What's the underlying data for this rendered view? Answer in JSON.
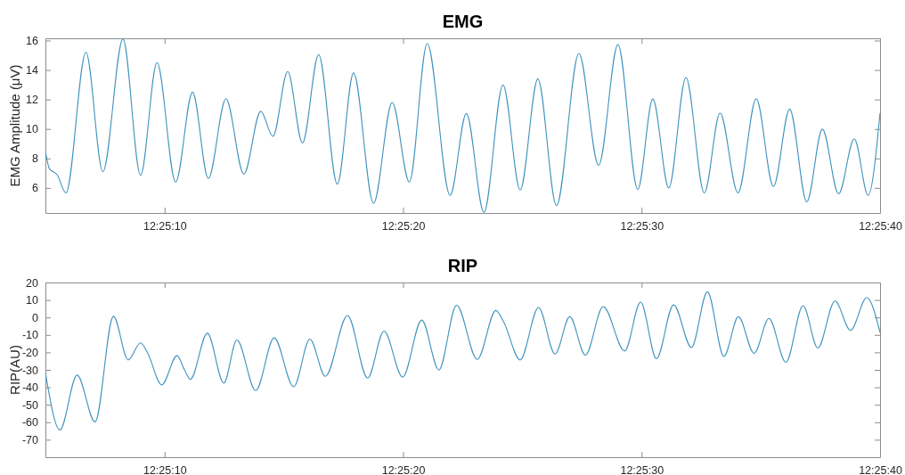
{
  "chart_data": [
    {
      "type": "line",
      "title": "EMG",
      "ylabel": "EMG Amplitude (μV)",
      "xlim": [
        12.418056,
        12.427778
      ],
      "xticks": [
        {
          "value": 12.419444,
          "label": "12:25:10"
        },
        {
          "value": 12.422222,
          "label": "12:25:20"
        },
        {
          "value": 12.425,
          "label": "12:25:30"
        },
        {
          "value": 12.427778,
          "label": "12:25:40"
        }
      ],
      "ylim": [
        4.3,
        16.15
      ],
      "yticks": [
        6,
        8,
        10,
        12,
        14,
        16
      ],
      "grid": false,
      "marker": "none",
      "line_style": "solid",
      "series": [
        {
          "color": "#3f93bd",
          "x": [
            12.418056,
            12.418103,
            12.418192,
            12.418295,
            12.418528,
            12.418725,
            12.418959,
            12.419164,
            12.419356,
            12.419573,
            12.41977,
            12.419953,
            12.420159,
            12.420367,
            12.420564,
            12.420706,
            12.420878,
            12.42105,
            12.421239,
            12.421456,
            12.421645,
            12.421878,
            12.422095,
            12.422295,
            12.422503,
            12.42277,
            12.422959,
            12.423164,
            12.423386,
            12.423586,
            12.423792,
            12.424009,
            12.42427,
            12.4245,
            12.424725,
            12.424956,
            12.425131,
            12.425317,
            12.425517,
            12.425731,
            12.425914,
            12.426123,
            12.426336,
            12.426536,
            12.426725,
            12.426925,
            12.427106,
            12.427295,
            12.427478,
            12.427639,
            12.427778
          ],
          "values": [
            8.5,
            7.3,
            6.9,
            5.66,
            15.2,
            7.1,
            16.1,
            6.86,
            14.5,
            6.4,
            12.5,
            6.64,
            12.05,
            6.94,
            11.2,
            9.5,
            13.9,
            9.05,
            15.05,
            6.26,
            13.8,
            4.96,
            11.8,
            6.4,
            15.8,
            5.5,
            11.05,
            4.35,
            12.99,
            5.86,
            13.39,
            4.8,
            15.12,
            7.54,
            15.72,
            5.9,
            12.03,
            6.0,
            13.49,
            5.66,
            11.09,
            5.66,
            12.05,
            6.1,
            11.35,
            5.06,
            9.99,
            5.6,
            9.33,
            5.5,
            11.09
          ]
        }
      ]
    },
    {
      "type": "line",
      "title": "RIP",
      "ylabel": "RIP(AU)",
      "xlim": [
        12.418056,
        12.427778
      ],
      "xticks": [
        {
          "value": 12.419444,
          "label": "12:25:10"
        },
        {
          "value": 12.422222,
          "label": "12:25:20"
        },
        {
          "value": 12.425,
          "label": "12:25:30"
        },
        {
          "value": 12.427778,
          "label": "12:25:40"
        }
      ],
      "ylim": [
        -80,
        20
      ],
      "yticks": [
        -70,
        -60,
        -50,
        -40,
        -30,
        -20,
        -10,
        0,
        10,
        20
      ],
      "grid": false,
      "marker": "none",
      "line_style": "solid",
      "series": [
        {
          "color": "#3f93bd",
          "x": [
            12.418056,
            12.418225,
            12.418425,
            12.418634,
            12.418848,
            12.41902,
            12.419164,
            12.419245,
            12.419411,
            12.419589,
            12.419675,
            12.419745,
            12.419942,
            12.420134,
            12.420286,
            12.420506,
            12.42072,
            12.420948,
            12.421136,
            12.421317,
            12.421575,
            12.421809,
            12.422,
            12.422217,
            12.422439,
            12.422639,
            12.422845,
            12.423086,
            12.423303,
            12.423395,
            12.423586,
            12.4238,
            12.423992,
            12.424164,
            12.424345,
            12.424553,
            12.424803,
            12.424989,
            12.425173,
            12.425373,
            12.425581,
            12.425767,
            12.425959,
            12.426128,
            12.426311,
            12.426484,
            12.426681,
            12.426881,
            12.427053,
            12.427253,
            12.427434,
            12.427623,
            12.427778
          ],
          "values": [
            -31.6,
            -64.4,
            -33.0,
            -59.8,
            0.7,
            -24.3,
            -14.6,
            -20.2,
            -38.6,
            -21.9,
            -29.9,
            -35.4,
            -9,
            -37.6,
            -12.9,
            -41.9,
            -11.7,
            -39.7,
            -12.4,
            -33.7,
            1.1,
            -34.7,
            -7.8,
            -34.2,
            -1.5,
            -30.1,
            7.0,
            -24.0,
            4.0,
            -2.7,
            -24.3,
            5.7,
            -20.9,
            0.4,
            -21.6,
            6.2,
            -19.2,
            8.8,
            -23.6,
            7.2,
            -17.2,
            14.7,
            -22.3,
            0.4,
            -20.6,
            -0.5,
            -25.7,
            6.7,
            -17.5,
            9.4,
            -7.4,
            11.3,
            -8.6
          ]
        }
      ]
    }
  ]
}
